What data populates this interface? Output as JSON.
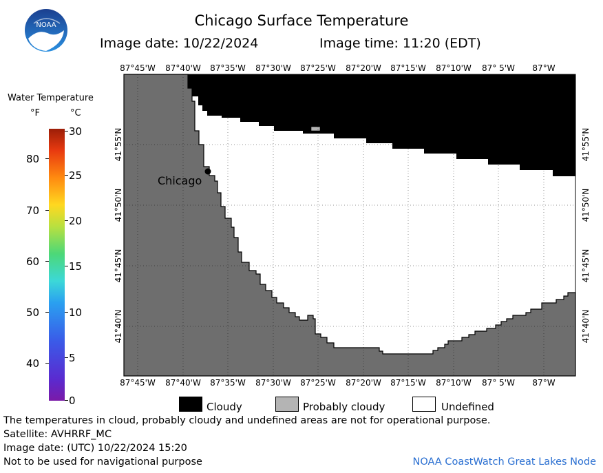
{
  "header": {
    "logo_text": "NOAA",
    "title": "Chicago Surface Temperature",
    "image_date": "Image date: 10/22/2024",
    "image_time": "Image time: 11:20 (EDT)"
  },
  "map": {
    "longitude_labels": [
      "87°45'W",
      "87°40'W",
      "87°35'W",
      "87°30'W",
      "87°25'W",
      "87°20'W",
      "87°15'W",
      "87°10'W",
      "87° 5'W",
      "87°W"
    ],
    "latitude_labels": [
      "41°55'N",
      "41°50'N",
      "41°45'N",
      "41°40'N"
    ],
    "city_label": "Chicago",
    "colors": {
      "land": "#6e6e6e",
      "cloud": "#000000",
      "undefined": "#ffffff",
      "probably_cloudy": "#b4b4b4"
    }
  },
  "colorbar": {
    "title": "Water Temperature",
    "unit_f": "°F",
    "unit_c": "°C",
    "fahrenheit_ticks": [
      "80",
      "70",
      "60",
      "50",
      "40"
    ],
    "celsius_ticks": [
      "30",
      "25",
      "20",
      "15",
      "10",
      "5",
      "0"
    ]
  },
  "legend": {
    "items": [
      {
        "label": "Cloudy",
        "color": "#000000"
      },
      {
        "label": "Probably cloudy",
        "color": "#b4b4b4"
      },
      {
        "label": "Undefined",
        "color": "#ffffff"
      }
    ]
  },
  "footer": {
    "disclaimer": "The temperatures in cloud, probably cloudy and undefined areas are not for operational purpose.",
    "satellite": "Satellite: AVHRRF_MC",
    "utc_date": "Image date: (UTC) 10/22/2024  15:20",
    "nav_warning": "Not to be used for navigational purpose",
    "credit": "NOAA CoastWatch Great Lakes Node"
  }
}
